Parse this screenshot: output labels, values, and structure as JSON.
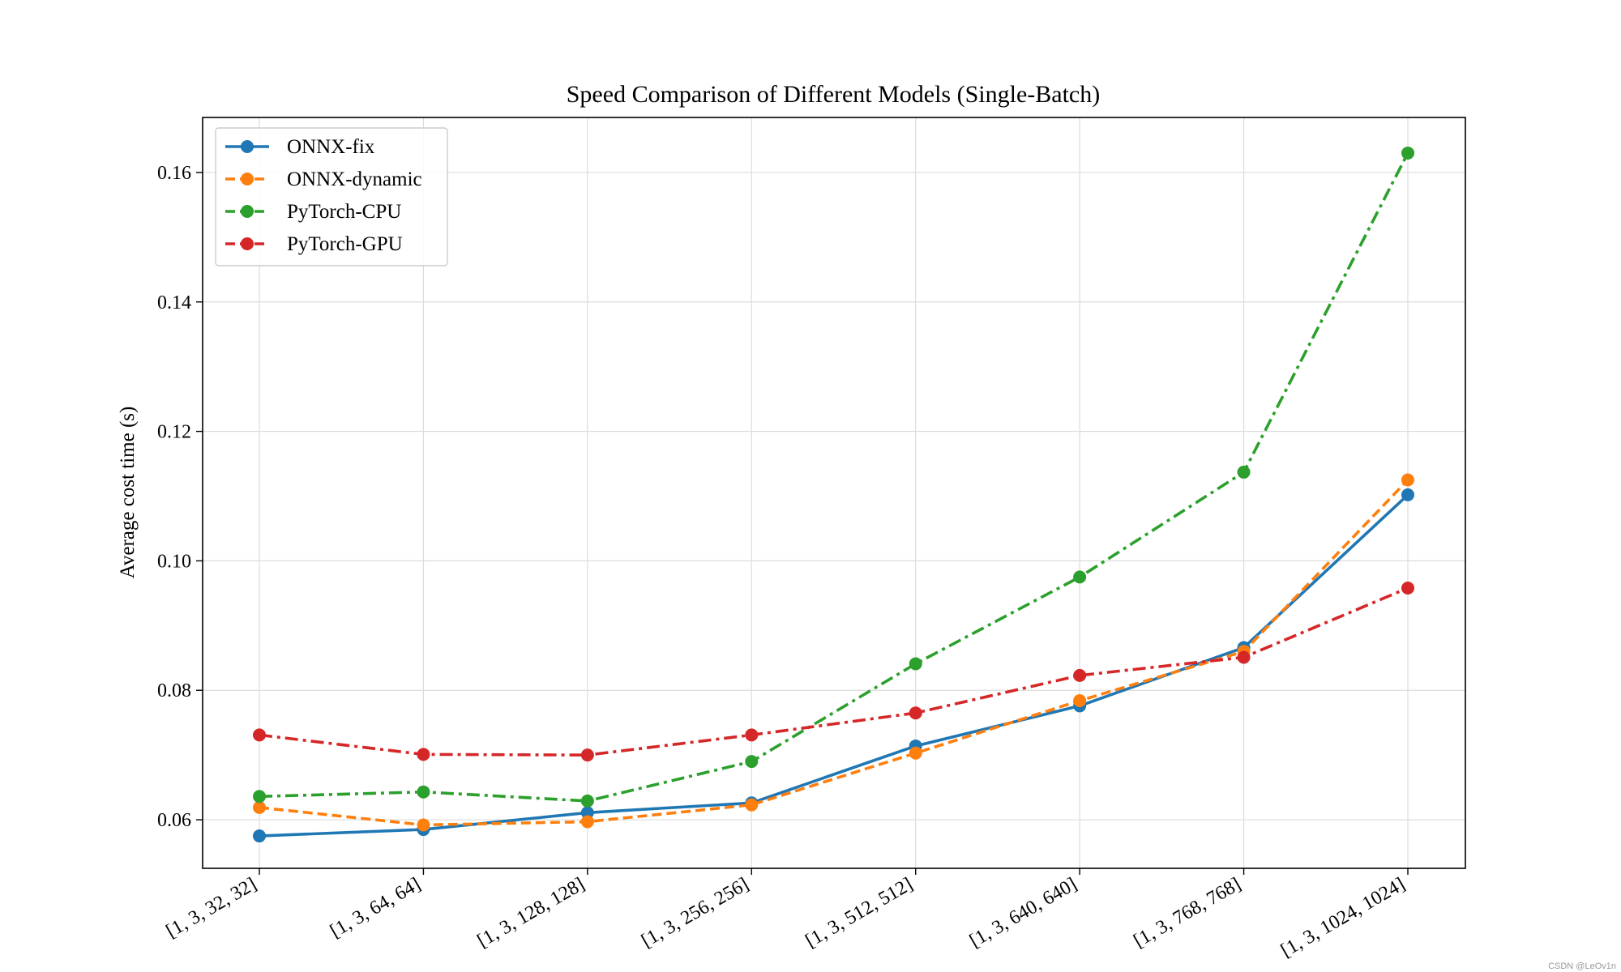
{
  "watermark": "CSDN @LeOv1n",
  "chart_data": {
    "type": "line",
    "title": "Speed Comparison of Different Models (Single-Batch)",
    "xlabel": "",
    "ylabel": "Average cost time (s)",
    "categories": [
      "[1, 3, 32, 32]",
      "[1, 3, 64, 64]",
      "[1, 3, 128, 128]",
      "[1, 3, 256, 256]",
      "[1, 3, 512, 512]",
      "[1, 3, 640, 640]",
      "[1, 3, 768, 768]",
      "[1, 3, 1024, 1024]"
    ],
    "ylim": [
      0.0525,
      0.1685
    ],
    "yticks": [
      0.06,
      0.08,
      0.1,
      0.12,
      0.14,
      0.16
    ],
    "ytick_labels": [
      "0.06",
      "0.08",
      "0.10",
      "0.12",
      "0.14",
      "0.16"
    ],
    "grid": true,
    "legend_position": "top-left",
    "series": [
      {
        "name": "ONNX-fix",
        "color": "#1f77b4",
        "linestyle": "solid",
        "values": [
          0.0575,
          0.0585,
          0.0611,
          0.0626,
          0.0714,
          0.0776,
          0.0866,
          0.1102
        ]
      },
      {
        "name": "ONNX-dynamic",
        "color": "#ff7f0e",
        "linestyle": "dashed",
        "values": [
          0.0619,
          0.0592,
          0.0597,
          0.0623,
          0.0703,
          0.0784,
          0.086,
          0.1125
        ]
      },
      {
        "name": "PyTorch-CPU",
        "color": "#2ca02c",
        "linestyle": "dashdot",
        "values": [
          0.0636,
          0.0643,
          0.0629,
          0.069,
          0.0841,
          0.0975,
          0.1137,
          0.163
        ]
      },
      {
        "name": "PyTorch-GPU",
        "color": "#d62728",
        "linestyle": "dashdot",
        "values": [
          0.0731,
          0.0701,
          0.07,
          0.0731,
          0.0765,
          0.0823,
          0.0851,
          0.0958
        ]
      }
    ]
  }
}
